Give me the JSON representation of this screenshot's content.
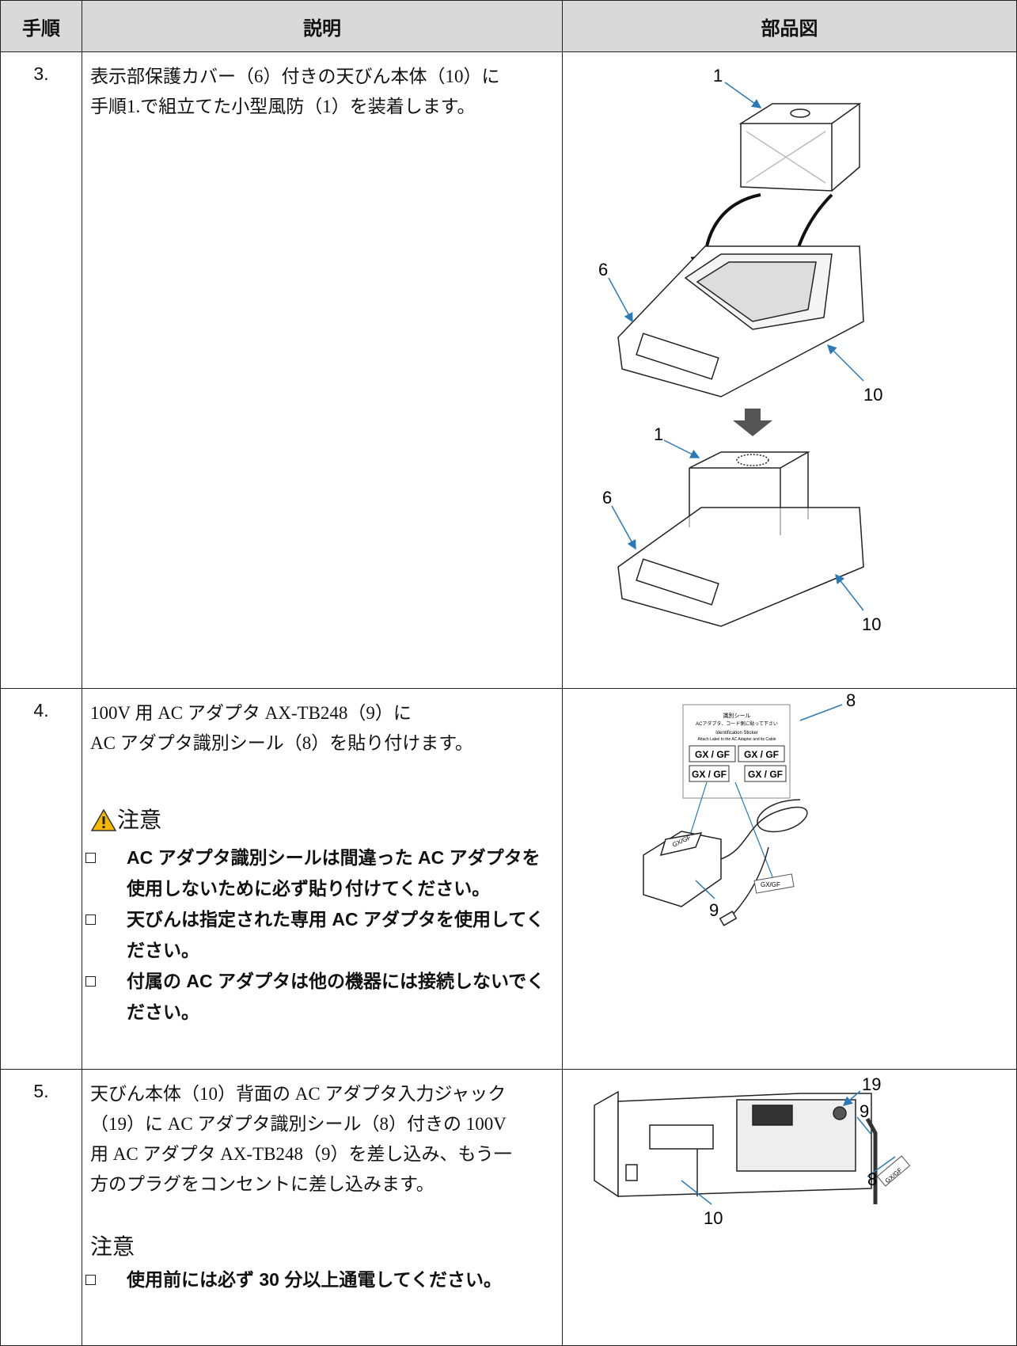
{
  "table": {
    "header": [
      "手順",
      "説明",
      "部品図"
    ],
    "rows": [
      {
        "step": "3.",
        "description": [
          "表示部保護カバー（6）付きの天びん本体（10）に",
          "手順1.で組立てた小型風防（1）を装着します。"
        ],
        "figure_labels": [
          "1",
          "6",
          "10",
          "1",
          "6",
          "10"
        ]
      },
      {
        "step": "4.",
        "description": [
          "100V 用 AC アダプタ AX-TB248（9）に",
          "AC アダプタ識別シール（8）を貼り付けます。"
        ],
        "caution": {
          "title": "注意",
          "items": [
            "AC アダプタ識別シールは間違った AC アダプタを使用しないために必ず貼り付けてください。",
            "天びんは指定された専用 AC アダプタを使用してください。",
            "付属の AC アダプタは他の機器には接続しないでください。"
          ]
        },
        "sticker": {
          "title": "識別シール",
          "note": "ACアダプタ、コード側に貼って下さい",
          "title_en": "Identification Sticker",
          "note_en": "Attach Label to the AC Adapter and its Cable",
          "labels": [
            "GX / GF",
            "GX / GF",
            "GX / GF",
            "GX / GF"
          ],
          "tags": [
            "GX/GF",
            "GX/GF"
          ]
        },
        "figure_labels": [
          "8",
          "9"
        ]
      },
      {
        "step": "5.",
        "description": [
          "天びん本体（10）背面の AC アダプタ入力ジャック",
          "（19）に AC アダプタ識別シール（8）付きの 100V",
          "用 AC アダプタ AX-TB248（9）を差し込み、もう一",
          "方のプラグをコンセントに差し込みます。"
        ],
        "caution": {
          "title": "注意",
          "items": [
            "使用前には必ず 30 分以上通電してください。"
          ]
        },
        "tag": "GX/GF",
        "figure_labels": [
          "19",
          "9",
          "8",
          "10"
        ]
      }
    ]
  }
}
